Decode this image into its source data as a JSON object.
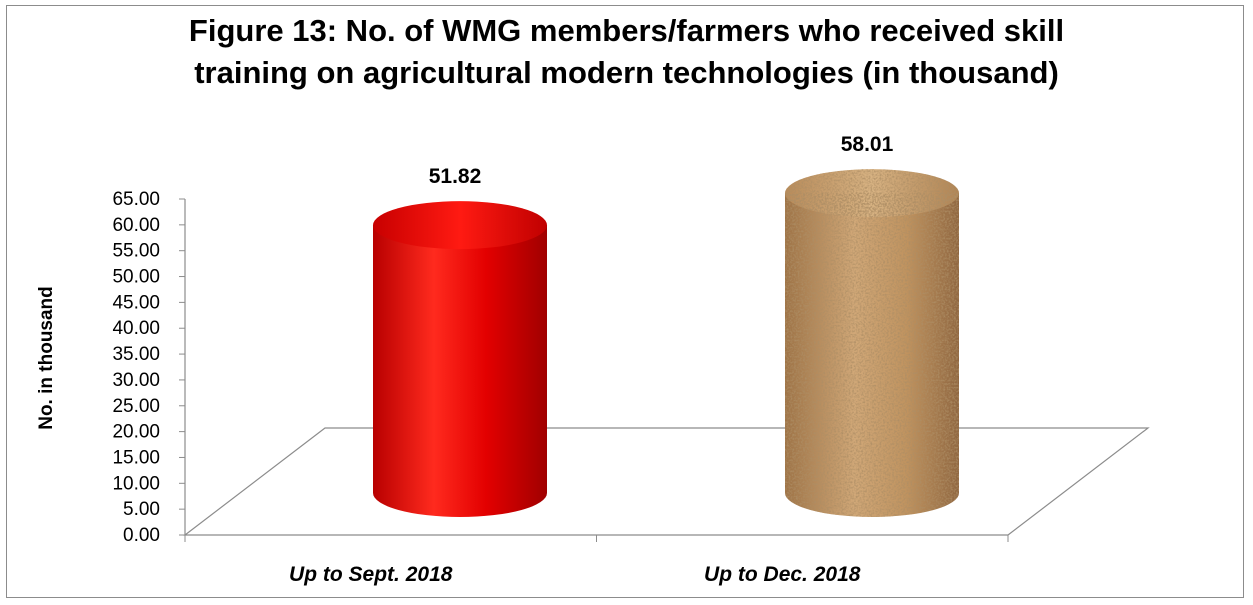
{
  "chart_data": {
    "type": "bar",
    "title_line1": "Figure 13: No. of WMG members/farmers who received skill",
    "title_line2": "training on agricultural modern technologies (in thousand)",
    "xlabel": "",
    "ylabel": "No. in thousand",
    "categories": [
      "Up to Sept. 2018",
      "Up to Dec. 2018"
    ],
    "values": [
      51.82,
      58.01
    ],
    "data_labels": [
      "51.82",
      "58.01"
    ],
    "ylim": [
      0,
      65
    ],
    "ytick_step": 5,
    "ytick_labels": [
      "0.00",
      "5.00",
      "10.00",
      "15.00",
      "20.00",
      "25.00",
      "30.00",
      "35.00",
      "40.00",
      "45.00",
      "50.00",
      "55.00",
      "60.00",
      "65.00"
    ],
    "bar_style": "3d-cylinder",
    "colors": [
      "#e00000",
      "#b8895a"
    ],
    "legend": "none",
    "grid": false
  }
}
